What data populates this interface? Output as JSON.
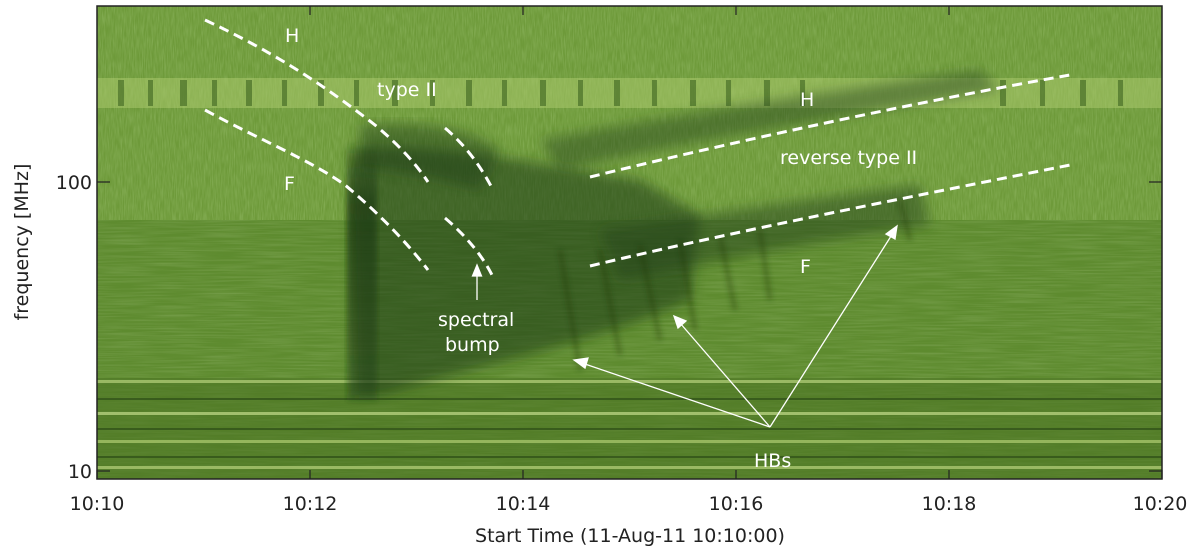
{
  "figure": {
    "xlabel": "Start Time (11-Aug-11 10:10:00)",
    "ylabel": "frequency [MHz]",
    "x_ticks": [
      "10:10",
      "10:12",
      "10:14",
      "10:16",
      "10:18",
      "10:20"
    ],
    "y_ticks": [
      "100",
      "10"
    ],
    "y_scale": "log",
    "y_range_mhz": [
      10,
      450
    ],
    "x_range": [
      "10:10",
      "10:20"
    ],
    "colors": {
      "background_band_upper": "#6f9a3a",
      "background_band_lower": "#5f8c2e",
      "emission_dark": "#1f3a12",
      "annotation": "#ffffff",
      "frame": "#222222"
    },
    "annotations": {
      "harmonic_left": "H",
      "type_ii": "type II",
      "fundamental_left": "F",
      "harmonic_right": "H",
      "reverse_type_ii": "reverse type II",
      "fundamental_right": "F",
      "spectral_bump_line1": "spectral",
      "spectral_bump_line2": "bump",
      "herringbones": "HBs"
    }
  }
}
